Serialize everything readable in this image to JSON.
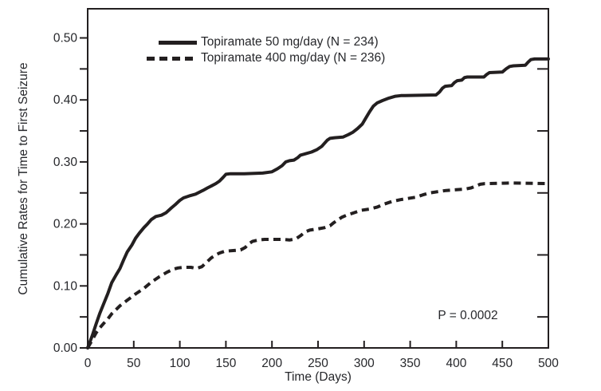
{
  "colors": {
    "line": "#231f20",
    "text": "#26272b",
    "background": "#ffffff"
  },
  "chart_data": {
    "type": "line",
    "title": "",
    "xlabel": "Time (Days)",
    "ylabel": "Cumulative Rates for Time to First Seizure",
    "xlim": [
      0,
      500
    ],
    "ylim": [
      0,
      0.5
    ],
    "grid": false,
    "legend_position": "top-left-inside",
    "annotation": {
      "text": "P = 0.0002"
    },
    "x_ticks": {
      "values": [
        0,
        50,
        100,
        150,
        200,
        250,
        300,
        350,
        400,
        450,
        500
      ],
      "labels": [
        "0",
        "50",
        "100",
        "150",
        "200",
        "250",
        "300",
        "350",
        "400",
        "450",
        "500"
      ]
    },
    "y_ticks": {
      "major_values": [
        0.0,
        0.1,
        0.2,
        0.3,
        0.4,
        0.5
      ],
      "major_labels": [
        "0.00",
        "0.10",
        "0.20",
        "0.30",
        "0.40",
        "0.50"
      ],
      "minor_values": [
        0.0,
        0.05,
        0.1,
        0.15,
        0.2,
        0.25,
        0.3,
        0.35,
        0.4,
        0.45,
        0.5
      ],
      "right_values": [
        0.05,
        0.15,
        0.25,
        0.35,
        0.45
      ]
    },
    "series": [
      {
        "name": "Topiramate 50 mg/day (N = 234)",
        "line_style": "solid",
        "color": "#231f20",
        "points": [
          [
            0,
            0.0
          ],
          [
            5,
            0.02
          ],
          [
            9,
            0.038
          ],
          [
            13,
            0.055
          ],
          [
            17,
            0.07
          ],
          [
            22,
            0.088
          ],
          [
            26,
            0.105
          ],
          [
            31,
            0.118
          ],
          [
            35,
            0.128
          ],
          [
            39,
            0.142
          ],
          [
            43,
            0.155
          ],
          [
            48,
            0.166
          ],
          [
            52,
            0.177
          ],
          [
            56,
            0.185
          ],
          [
            61,
            0.194
          ],
          [
            65,
            0.2
          ],
          [
            69,
            0.207
          ],
          [
            74,
            0.212
          ],
          [
            80,
            0.214
          ],
          [
            85,
            0.218
          ],
          [
            91,
            0.226
          ],
          [
            95,
            0.231
          ],
          [
            100,
            0.238
          ],
          [
            104,
            0.242
          ],
          [
            110,
            0.245
          ],
          [
            117,
            0.248
          ],
          [
            125,
            0.254
          ],
          [
            130,
            0.258
          ],
          [
            134,
            0.261
          ],
          [
            139,
            0.265
          ],
          [
            143,
            0.269
          ],
          [
            147,
            0.275
          ],
          [
            150,
            0.28
          ],
          [
            155,
            0.281
          ],
          [
            170,
            0.281
          ],
          [
            190,
            0.282
          ],
          [
            200,
            0.284
          ],
          [
            206,
            0.289
          ],
          [
            211,
            0.294
          ],
          [
            215,
            0.3
          ],
          [
            219,
            0.302
          ],
          [
            224,
            0.303
          ],
          [
            228,
            0.307
          ],
          [
            231,
            0.311
          ],
          [
            236,
            0.313
          ],
          [
            243,
            0.316
          ],
          [
            249,
            0.32
          ],
          [
            254,
            0.325
          ],
          [
            257,
            0.33
          ],
          [
            260,
            0.335
          ],
          [
            263,
            0.338
          ],
          [
            268,
            0.339
          ],
          [
            277,
            0.34
          ],
          [
            283,
            0.344
          ],
          [
            288,
            0.348
          ],
          [
            293,
            0.354
          ],
          [
            298,
            0.361
          ],
          [
            302,
            0.371
          ],
          [
            306,
            0.381
          ],
          [
            310,
            0.39
          ],
          [
            314,
            0.395
          ],
          [
            320,
            0.399
          ],
          [
            327,
            0.403
          ],
          [
            334,
            0.406
          ],
          [
            340,
            0.407
          ],
          [
            378,
            0.408
          ],
          [
            382,
            0.413
          ],
          [
            385,
            0.419
          ],
          [
            388,
            0.422
          ],
          [
            395,
            0.423
          ],
          [
            398,
            0.428
          ],
          [
            401,
            0.431
          ],
          [
            406,
            0.432
          ],
          [
            409,
            0.436
          ],
          [
            412,
            0.437
          ],
          [
            430,
            0.437
          ],
          [
            433,
            0.441
          ],
          [
            436,
            0.444
          ],
          [
            450,
            0.445
          ],
          [
            454,
            0.45
          ],
          [
            458,
            0.454
          ],
          [
            462,
            0.455
          ],
          [
            475,
            0.456
          ],
          [
            478,
            0.461
          ],
          [
            481,
            0.465
          ],
          [
            485,
            0.466
          ],
          [
            500,
            0.466
          ]
        ]
      },
      {
        "name": "Topiramate 400 mg/day (N = 236)",
        "line_style": "dashed",
        "color": "#231f20",
        "points": [
          [
            0,
            0.0
          ],
          [
            5,
            0.013
          ],
          [
            9,
            0.024
          ],
          [
            13,
            0.032
          ],
          [
            17,
            0.039
          ],
          [
            22,
            0.047
          ],
          [
            26,
            0.055
          ],
          [
            31,
            0.062
          ],
          [
            35,
            0.068
          ],
          [
            43,
            0.077
          ],
          [
            52,
            0.087
          ],
          [
            61,
            0.096
          ],
          [
            69,
            0.106
          ],
          [
            78,
            0.115
          ],
          [
            86,
            0.122
          ],
          [
            93,
            0.127
          ],
          [
            98,
            0.129
          ],
          [
            104,
            0.13
          ],
          [
            112,
            0.13
          ],
          [
            118,
            0.128
          ],
          [
            124,
            0.131
          ],
          [
            129,
            0.138
          ],
          [
            134,
            0.145
          ],
          [
            139,
            0.15
          ],
          [
            143,
            0.153
          ],
          [
            149,
            0.156
          ],
          [
            158,
            0.157
          ],
          [
            166,
            0.158
          ],
          [
            171,
            0.162
          ],
          [
            175,
            0.168
          ],
          [
            179,
            0.172
          ],
          [
            185,
            0.174
          ],
          [
            192,
            0.175
          ],
          [
            212,
            0.175
          ],
          [
            219,
            0.174
          ],
          [
            226,
            0.176
          ],
          [
            231,
            0.181
          ],
          [
            236,
            0.187
          ],
          [
            241,
            0.19
          ],
          [
            250,
            0.192
          ],
          [
            257,
            0.194
          ],
          [
            263,
            0.197
          ],
          [
            267,
            0.202
          ],
          [
            272,
            0.207
          ],
          [
            276,
            0.211
          ],
          [
            281,
            0.214
          ],
          [
            289,
            0.218
          ],
          [
            297,
            0.222
          ],
          [
            306,
            0.224
          ],
          [
            314,
            0.227
          ],
          [
            322,
            0.232
          ],
          [
            330,
            0.236
          ],
          [
            339,
            0.239
          ],
          [
            347,
            0.241
          ],
          [
            356,
            0.243
          ],
          [
            364,
            0.247
          ],
          [
            371,
            0.25
          ],
          [
            380,
            0.252
          ],
          [
            389,
            0.254
          ],
          [
            398,
            0.255
          ],
          [
            409,
            0.256
          ],
          [
            416,
            0.258
          ],
          [
            421,
            0.261
          ],
          [
            426,
            0.264
          ],
          [
            431,
            0.265
          ],
          [
            460,
            0.266
          ],
          [
            500,
            0.265
          ]
        ]
      }
    ]
  }
}
